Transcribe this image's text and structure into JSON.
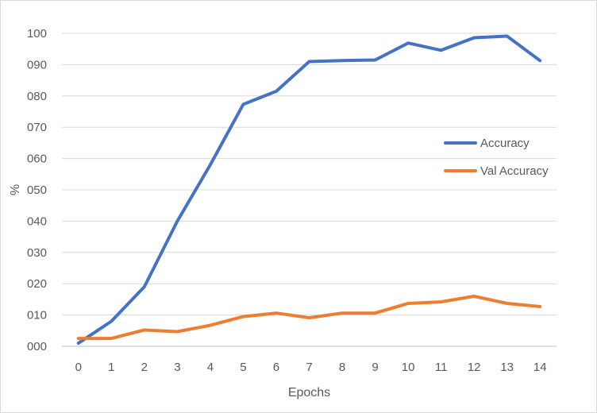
{
  "chart_data": {
    "type": "line",
    "title": "",
    "xlabel": "Epochs",
    "ylabel": "%",
    "x": [
      0,
      1,
      2,
      3,
      4,
      5,
      6,
      7,
      8,
      9,
      10,
      11,
      12,
      13,
      14
    ],
    "x_tick_labels": [
      "0",
      "1",
      "2",
      "3",
      "4",
      "5",
      "6",
      "7",
      "8",
      "9",
      "10",
      "11",
      "12",
      "13",
      "14"
    ],
    "ylim": [
      0,
      100
    ],
    "y_ticks": [
      0,
      10,
      20,
      30,
      40,
      50,
      60,
      70,
      80,
      90,
      100
    ],
    "y_tick_labels": [
      "000",
      "010",
      "020",
      "030",
      "040",
      "050",
      "060",
      "070",
      "080",
      "090",
      "100"
    ],
    "grid": true,
    "legend_position": "right",
    "series": [
      {
        "name": "Accuracy",
        "color": "#4472c4",
        "values": [
          1,
          8,
          19,
          40,
          58,
          77.3,
          81.5,
          91,
          91.3,
          91.5,
          96.9,
          94.6,
          98.6,
          99.1,
          91.3
        ]
      },
      {
        "name": "Val Accuracy",
        "color": "#ed7d31",
        "values": [
          2.5,
          2.5,
          5.2,
          4.7,
          6.7,
          9.5,
          10.6,
          9.1,
          10.6,
          10.6,
          13.7,
          14.2,
          16,
          13.7,
          12.7
        ]
      }
    ]
  }
}
